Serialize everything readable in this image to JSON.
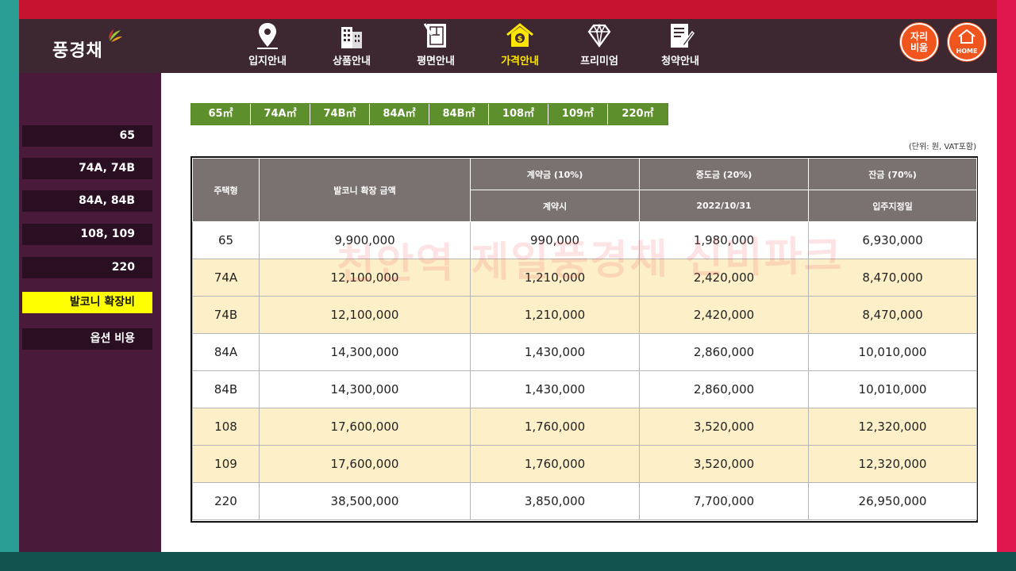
{
  "brand": {
    "logo_text": "풍경채"
  },
  "nav": [
    {
      "label": "입지안내",
      "icon": "map-pin-icon"
    },
    {
      "label": "상품안내",
      "icon": "building-icon"
    },
    {
      "label": "평면안내",
      "icon": "floorplan-icon"
    },
    {
      "label": "가격안내",
      "icon": "house-price-icon",
      "active": true
    },
    {
      "label": "프리미엄",
      "icon": "diamond-icon"
    },
    {
      "label": "청약안내",
      "icon": "document-pen-icon"
    }
  ],
  "top_buttons": {
    "reserve_line1": "자리",
    "reserve_line2": "비움",
    "home_label": "HOME"
  },
  "sidebar": {
    "items": [
      {
        "label": "65"
      },
      {
        "label": "74A, 74B"
      },
      {
        "label": "84A, 84B"
      },
      {
        "label": "108, 109"
      },
      {
        "label": "220"
      },
      {
        "label": "발코니 확장비",
        "active": true
      },
      {
        "label": "옵션 비용"
      }
    ]
  },
  "tabs": [
    "65㎡",
    "74A㎡",
    "74B㎡",
    "84A㎡",
    "84B㎡",
    "108㎡",
    "109㎡",
    "220㎡"
  ],
  "unit_note": "(단위: 원, VAT포함)",
  "table": {
    "headers": {
      "type": "주택형",
      "amount": "발코니 확장 금액",
      "deposit": "계약금 (10%)",
      "deposit_sub": "계약시",
      "middle": "중도금 (20%)",
      "middle_sub": "2022/10/31",
      "balance": "잔금 (70%)",
      "balance_sub": "입주지정일"
    },
    "rows": [
      {
        "type": "65",
        "amount": "9,900,000",
        "deposit": "990,000",
        "middle": "1,980,000",
        "balance": "6,930,000"
      },
      {
        "type": "74A",
        "amount": "12,100,000",
        "deposit": "1,210,000",
        "middle": "2,420,000",
        "balance": "8,470,000"
      },
      {
        "type": "74B",
        "amount": "12,100,000",
        "deposit": "1,210,000",
        "middle": "2,420,000",
        "balance": "8,470,000"
      },
      {
        "type": "84A",
        "amount": "14,300,000",
        "deposit": "1,430,000",
        "middle": "2,860,000",
        "balance": "10,010,000"
      },
      {
        "type": "84B",
        "amount": "14,300,000",
        "deposit": "1,430,000",
        "middle": "2,860,000",
        "balance": "10,010,000"
      },
      {
        "type": "108",
        "amount": "17,600,000",
        "deposit": "1,760,000",
        "middle": "3,520,000",
        "balance": "12,320,000"
      },
      {
        "type": "109",
        "amount": "17,600,000",
        "deposit": "1,760,000",
        "middle": "3,520,000",
        "balance": "12,320,000"
      },
      {
        "type": "220",
        "amount": "38,500,000",
        "deposit": "3,850,000",
        "middle": "7,700,000",
        "balance": "26,950,000"
      }
    ]
  },
  "watermark": "천안역 제일풍경채 신비파크",
  "colors": {
    "nav_bg": "#3d2730",
    "sidebar_bg": "#4a1a3a",
    "active_nav": "#ffe600",
    "active_side": "#ffff00",
    "tab_green": "#5e8f2d",
    "header_gray": "#7a7171",
    "highlight_row": "#fdf0c8",
    "orange_button": "#f0551e"
  }
}
